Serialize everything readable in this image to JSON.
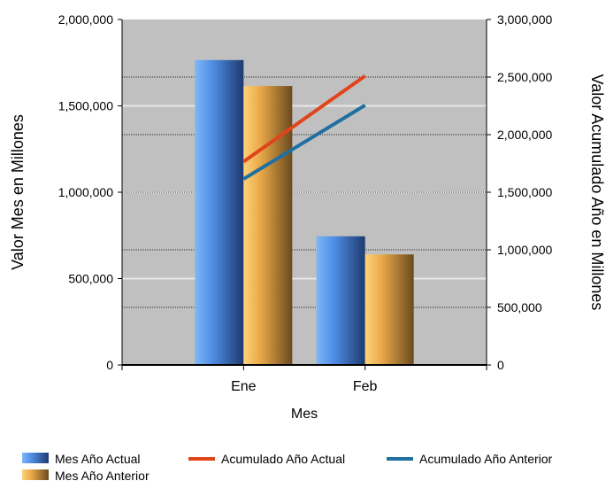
{
  "chart_data": {
    "type": "bar",
    "categories": [
      "Ene",
      "Feb"
    ],
    "xlabel": "Mes",
    "ylabel": "Valor Mes en Millones",
    "y2label": "Valor Acumulado Año en Millones",
    "ylim": [
      0,
      2000000
    ],
    "y2lim": [
      0,
      3000000
    ],
    "yticks": [
      "0",
      "500,000",
      "1,000,000",
      "1,500,000",
      "2,000,000"
    ],
    "y2ticks": [
      "0",
      "500,000",
      "1,000,000",
      "1,500,000",
      "2,000,000",
      "2,500,000",
      "3,000,000"
    ],
    "grid": true,
    "legend_position": "bottom",
    "colors": {
      "plot_background": "#c0c0c0",
      "bar_actual": "#4f8fe6",
      "bar_anterior": "#f2b040",
      "line_actual": "#e0441a",
      "line_anterior": "#1f6fa0"
    },
    "series": [
      {
        "name": "Mes Año Actual",
        "type": "bar",
        "axis": "left",
        "values": [
          1765000,
          745000
        ]
      },
      {
        "name": "Mes Año Anterior",
        "type": "bar",
        "axis": "left",
        "values": [
          1615000,
          640000
        ]
      },
      {
        "name": "Acumulado Año Actual",
        "type": "line",
        "axis": "right",
        "values": [
          1765000,
          2510000
        ]
      },
      {
        "name": "Acumulado Año Anterior",
        "type": "line",
        "axis": "right",
        "values": [
          1615000,
          2255000
        ]
      }
    ]
  }
}
